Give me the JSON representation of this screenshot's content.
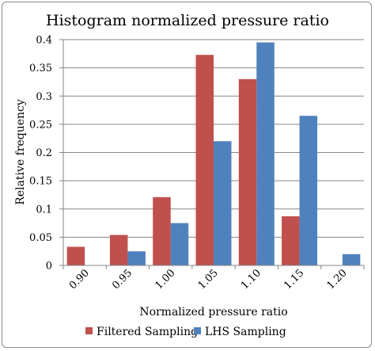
{
  "chart_data": {
    "type": "bar",
    "title": "Histogram normalized pressure ratio",
    "xlabel": "Normalized pressure ratio",
    "ylabel": "Relative frequency",
    "categories": [
      "0.90",
      "0.95",
      "1.00",
      "1.05",
      "1.10",
      "1.15",
      "1.20"
    ],
    "series": [
      {
        "name": "Filtered Sampling",
        "color": "#c0504d",
        "values": [
          0.033,
          0.054,
          0.121,
          0.373,
          0.33,
          0.087,
          0.0
        ]
      },
      {
        "name": "LHS Sampling",
        "color": "#4f81bd",
        "values": [
          0.0,
          0.025,
          0.075,
          0.22,
          0.395,
          0.265,
          0.02
        ]
      }
    ],
    "ylim": [
      0,
      0.4
    ],
    "yticks": [
      "0",
      "0.05",
      "0.1",
      "0.15",
      "0.2",
      "0.25",
      "0.3",
      "0.35",
      "0.4"
    ],
    "grid": true,
    "legend_position": "bottom"
  }
}
